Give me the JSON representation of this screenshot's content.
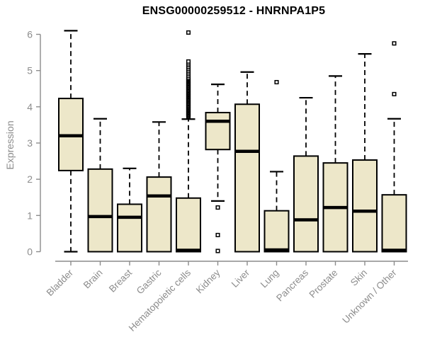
{
  "chart_data": {
    "type": "boxplot",
    "title": "ENSG00000259512 - HNRNPA1P5",
    "ylabel": "Expression",
    "xlabel": "",
    "ylim": [
      0,
      6
    ],
    "yticks": [
      0,
      1,
      2,
      3,
      4,
      5,
      6
    ],
    "grid": false,
    "legend": false,
    "categories": [
      "Bladder",
      "Brain",
      "Breast",
      "Gastric",
      "Hematopoietic cells",
      "Kidney",
      "Liver",
      "Lung",
      "Pancreas",
      "Prostate",
      "Skin",
      "Unknown / Other"
    ],
    "series": [
      {
        "name": "Bladder",
        "low": 0,
        "q1": 2.24,
        "median": 3.2,
        "q3": 4.23,
        "high": 6.1,
        "outliers": []
      },
      {
        "name": "Brain",
        "low": 0,
        "q1": 0,
        "median": 0.97,
        "q3": 2.28,
        "high": 3.67,
        "outliers": []
      },
      {
        "name": "Breast",
        "low": 0,
        "q1": 0,
        "median": 0.95,
        "q3": 1.31,
        "high": 2.3,
        "outliers": []
      },
      {
        "name": "Gastric",
        "low": 0,
        "q1": 0,
        "median": 1.54,
        "q3": 2.06,
        "high": 3.58,
        "outliers": []
      },
      {
        "name": "Hematopoietic cells",
        "low": 0,
        "q1": 0,
        "median": 0.04,
        "q3": 1.48,
        "high": 3.66,
        "outliers": [
          3.72,
          3.74,
          3.77,
          3.79,
          3.82,
          3.84,
          3.87,
          3.89,
          3.92,
          3.94,
          3.97,
          3.99,
          4.02,
          4.04,
          4.07,
          4.09,
          4.12,
          4.14,
          4.17,
          4.19,
          4.22,
          4.24,
          4.27,
          4.29,
          4.32,
          4.34,
          4.37,
          4.39,
          4.42,
          4.44,
          4.47,
          4.49,
          4.52,
          4.54,
          4.57,
          4.59,
          4.62,
          4.64,
          4.67,
          4.69,
          4.72,
          4.74,
          4.77,
          4.8,
          4.85,
          4.9,
          4.95,
          5.0,
          5.05,
          5.1,
          5.15,
          5.2,
          5.25,
          6.05
        ]
      },
      {
        "name": "Kidney",
        "low": 1.4,
        "q1": 2.82,
        "median": 3.6,
        "q3": 3.84,
        "high": 4.62,
        "outliers": [
          1.22,
          0.46,
          0.02
        ]
      },
      {
        "name": "Liver",
        "low": 0,
        "q1": 0,
        "median": 2.77,
        "q3": 4.07,
        "high": 4.96,
        "outliers": []
      },
      {
        "name": "Lung",
        "low": 0,
        "q1": 0,
        "median": 0.05,
        "q3": 1.13,
        "high": 2.21,
        "outliers": [
          4.68
        ]
      },
      {
        "name": "Pancreas",
        "low": 0,
        "q1": 0,
        "median": 0.88,
        "q3": 2.64,
        "high": 4.25,
        "outliers": []
      },
      {
        "name": "Prostate",
        "low": 0,
        "q1": 0,
        "median": 1.22,
        "q3": 2.45,
        "high": 4.85,
        "outliers": []
      },
      {
        "name": "Skin",
        "low": 0,
        "q1": 0,
        "median": 1.12,
        "q3": 2.53,
        "high": 5.46,
        "outliers": []
      },
      {
        "name": "Unknown / Other",
        "low": 0,
        "q1": 0,
        "median": 0.04,
        "q3": 1.57,
        "high": 3.67,
        "outliers": [
          4.35,
          5.75
        ]
      }
    ],
    "colors": {
      "box_fill": "#EDE7C9",
      "box_border": "#000000",
      "median": "#000000",
      "whisker": "#000000",
      "axis": "#8C8C8C",
      "tick_label": "#8C8C8C",
      "title": "#000000",
      "background": "#FFFFFF"
    }
  }
}
